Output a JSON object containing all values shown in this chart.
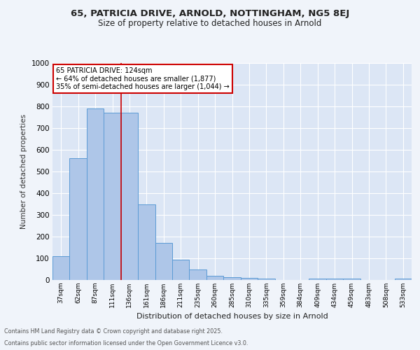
{
  "title_line1": "65, PATRICIA DRIVE, ARNOLD, NOTTINGHAM, NG5 8EJ",
  "title_line2": "Size of property relative to detached houses in Arnold",
  "xlabel": "Distribution of detached houses by size in Arnold",
  "ylabel": "Number of detached properties",
  "categories": [
    "37sqm",
    "62sqm",
    "87sqm",
    "111sqm",
    "136sqm",
    "161sqm",
    "186sqm",
    "211sqm",
    "235sqm",
    "260sqm",
    "285sqm",
    "310sqm",
    "335sqm",
    "359sqm",
    "384sqm",
    "409sqm",
    "434sqm",
    "459sqm",
    "483sqm",
    "508sqm",
    "533sqm"
  ],
  "values": [
    110,
    560,
    790,
    770,
    770,
    350,
    170,
    95,
    50,
    18,
    12,
    10,
    7,
    0,
    0,
    7,
    5,
    5,
    0,
    0,
    8
  ],
  "bar_color": "#aec6e8",
  "bar_edge_color": "#5b9bd5",
  "background_color": "#dce6f5",
  "grid_color": "#ffffff",
  "red_line_x": 3.52,
  "annotation_text": "65 PATRICIA DRIVE: 124sqm\n← 64% of detached houses are smaller (1,877)\n35% of semi-detached houses are larger (1,044) →",
  "annotation_box_color": "#ffffff",
  "annotation_border_color": "#cc0000",
  "footer_line1": "Contains HM Land Registry data © Crown copyright and database right 2025.",
  "footer_line2": "Contains public sector information licensed under the Open Government Licence v3.0.",
  "ylim": [
    0,
    1000
  ],
  "yticks": [
    0,
    100,
    200,
    300,
    400,
    500,
    600,
    700,
    800,
    900,
    1000
  ],
  "fig_bg": "#f0f4fa"
}
